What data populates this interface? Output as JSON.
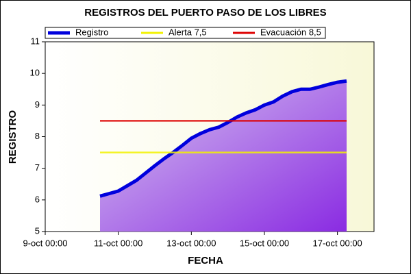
{
  "chart_data": {
    "type": "line",
    "title": "REGISTROS DEL PUERTO PASO DE LOS LIBRES",
    "xlabel": "FECHA",
    "ylabel": "REGISTRO",
    "xlim": [
      9,
      18
    ],
    "xticks": [
      {
        "value": 9,
        "label": "9-oct 00:00"
      },
      {
        "value": 11,
        "label": "11-oct 00:00"
      },
      {
        "value": 13,
        "label": "13-oct 00:00"
      },
      {
        "value": 15,
        "label": "15-oct 00:00"
      },
      {
        "value": 17,
        "label": "17-oct 00:00"
      }
    ],
    "ylim": [
      5,
      11
    ],
    "yticks": [
      5,
      6,
      7,
      8,
      9,
      10,
      11
    ],
    "legend": "top",
    "series": [
      {
        "name": "Registro",
        "color": "#0000dd",
        "fill": true,
        "x": [
          10.5,
          10.75,
          11,
          11.25,
          11.5,
          11.75,
          12,
          12.25,
          12.5,
          12.75,
          13,
          13.25,
          13.5,
          13.75,
          14,
          14.25,
          14.5,
          14.75,
          15,
          15.25,
          15.5,
          15.75,
          16,
          16.25,
          16.5,
          16.75,
          17,
          17.25
        ],
        "values": [
          6.12,
          6.2,
          6.28,
          6.45,
          6.62,
          6.85,
          7.08,
          7.3,
          7.5,
          7.72,
          7.95,
          8.1,
          8.22,
          8.3,
          8.45,
          8.62,
          8.75,
          8.85,
          9.0,
          9.1,
          9.28,
          9.42,
          9.5,
          9.5,
          9.57,
          9.65,
          9.72,
          9.76
        ]
      },
      {
        "name": "Alerta 7,5",
        "color": "#f2f200",
        "x": [
          10.5,
          17.25
        ],
        "values": [
          7.5,
          7.5
        ]
      },
      {
        "name": "Evacuación 8,5",
        "color": "#dd0000",
        "x": [
          10.5,
          17.25
        ],
        "values": [
          8.5,
          8.5
        ]
      }
    ]
  }
}
